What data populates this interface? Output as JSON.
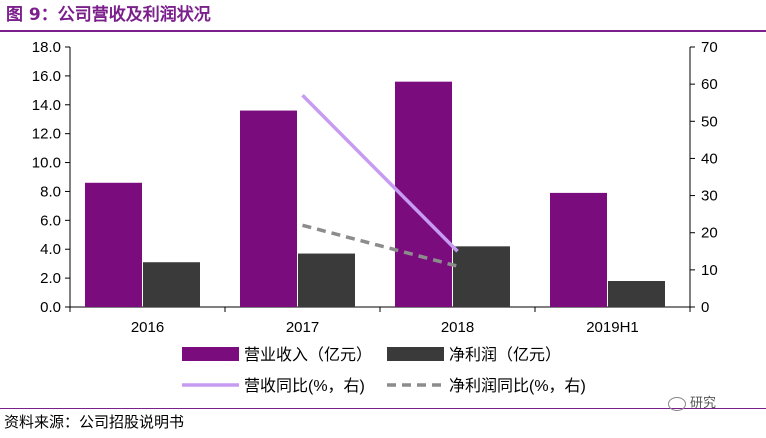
{
  "header": {
    "title": "图 9：公司营收及利润状况"
  },
  "footer": {
    "source": "资料来源：公司招股说明书",
    "watermark": "研究"
  },
  "colors": {
    "revenue": "#7b0c7e",
    "profit": "#3a3a3a",
    "revenue_yoy": "#c79bf2",
    "profit_yoy": "#8c8c8c",
    "brand": "#7b1f8c"
  },
  "chart_data": {
    "type": "bar",
    "categories": [
      "2016",
      "2017",
      "2018",
      "2019H1"
    ],
    "series": [
      {
        "name": "营业收入（亿元）",
        "axis": "left",
        "kind": "bar",
        "values": [
          8.6,
          13.6,
          15.6,
          7.9
        ]
      },
      {
        "name": "净利润（亿元）",
        "axis": "left",
        "kind": "bar",
        "values": [
          3.1,
          3.7,
          4.2,
          1.8
        ]
      },
      {
        "name": "营收同比(%，右)",
        "axis": "right",
        "kind": "line",
        "style": "solid",
        "values": [
          null,
          57,
          15,
          null
        ]
      },
      {
        "name": "净利润同比(%，右)",
        "axis": "right",
        "kind": "line",
        "style": "dashed",
        "values": [
          null,
          22,
          11,
          null
        ]
      }
    ],
    "left_axis": {
      "min": 0,
      "max": 18,
      "step": 2,
      "ticks": [
        "0.0",
        "2.0",
        "4.0",
        "6.0",
        "8.0",
        "10.0",
        "12.0",
        "14.0",
        "16.0",
        "18.0"
      ]
    },
    "right_axis": {
      "min": 0,
      "max": 70,
      "step": 10,
      "ticks": [
        "0",
        "10",
        "20",
        "30",
        "40",
        "50",
        "60",
        "70"
      ]
    },
    "legend_position": "bottom"
  }
}
